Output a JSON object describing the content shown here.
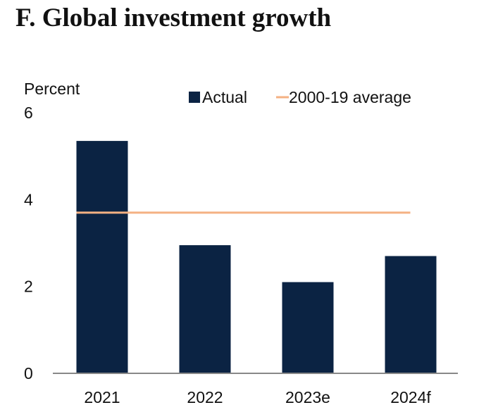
{
  "chart_data": {
    "type": "bar",
    "title": "F. Global investment growth",
    "ylabel": "Percent",
    "xlabel": "",
    "categories": [
      "2021",
      "2022",
      "2023e",
      "2024f"
    ],
    "series": [
      {
        "name": "Actual",
        "type": "bar",
        "color": "#0b2343",
        "values": [
          5.35,
          2.95,
          2.1,
          2.7
        ]
      },
      {
        "name": "2000-19 average",
        "type": "line",
        "color": "#f4b183",
        "values": [
          3.7,
          3.7,
          3.7,
          3.7
        ]
      }
    ],
    "ylim": [
      0,
      6
    ],
    "yticks": [
      "0",
      "2",
      "4",
      "6"
    ],
    "grid": false,
    "legend": "top-right"
  }
}
